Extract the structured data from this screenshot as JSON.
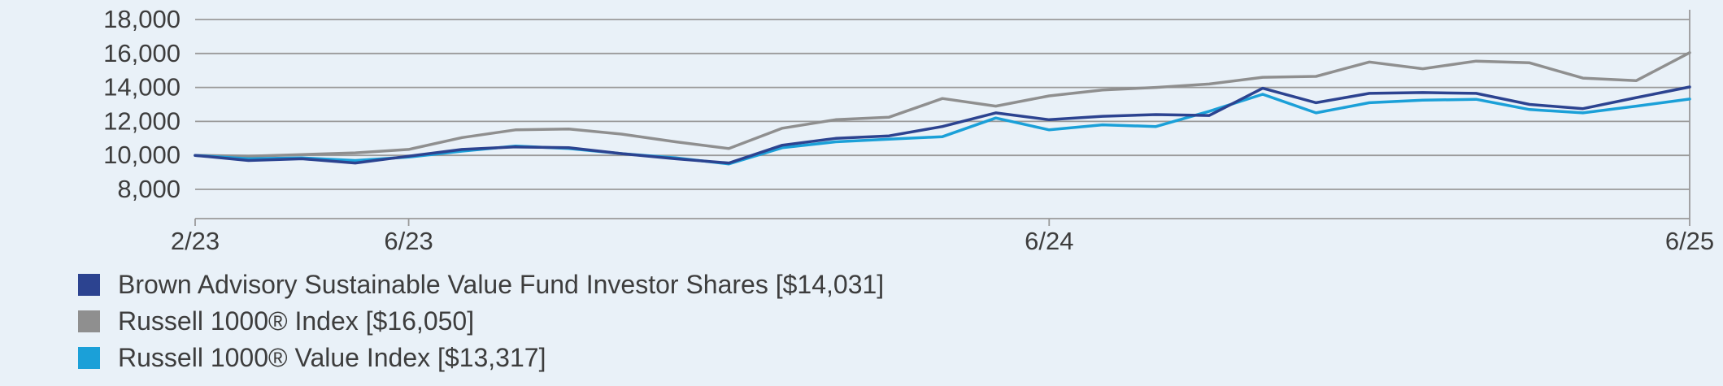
{
  "colors": {
    "background": "#e9f1f8",
    "gridline": "#9a9a9a",
    "axis": "#9a9a9a",
    "text": "#3d3d3d"
  },
  "chart_data": {
    "type": "line",
    "title": "",
    "grid": true,
    "legend_position": "bottom-left",
    "x_axis": {
      "unit": "month",
      "ticks": [
        {
          "position": 0,
          "label": "2/23"
        },
        {
          "position": 4,
          "label": "6/23"
        },
        {
          "position": 16,
          "label": "6/24"
        },
        {
          "position": 28,
          "label": "6/25"
        }
      ]
    },
    "y_axis": {
      "min": 8000,
      "max": 18000,
      "step": 2000,
      "ticks": [
        {
          "value": 18000,
          "label": "18,000"
        },
        {
          "value": 16000,
          "label": "16,000"
        },
        {
          "value": 14000,
          "label": "14,000"
        },
        {
          "value": 12000,
          "label": "12,000"
        },
        {
          "value": 10000,
          "label": "10,000"
        },
        {
          "value": 8000,
          "label": "8,000"
        }
      ]
    },
    "series": [
      {
        "id": "fund",
        "name": "Brown Advisory Sustainable Value Fund Investor Shares",
        "legend_label": "Brown Advisory Sustainable Value Fund Investor Shares [$14,031]",
        "final_value": 14031,
        "color": "#2c4390",
        "values": [
          10000,
          9700,
          9800,
          9550,
          9950,
          10350,
          10500,
          10450,
          10100,
          9800,
          9550,
          10600,
          11000,
          11150,
          11700,
          12500,
          12100,
          12300,
          12400,
          12350,
          13950,
          13100,
          13650,
          13700,
          13650,
          13000,
          12750,
          13400,
          14031
        ]
      },
      {
        "id": "russell-1000",
        "name": "Russell 1000® Index",
        "legend_label": "Russell 1000® Index [$16,050]",
        "final_value": 16050,
        "color": "#8f8f8f",
        "values": [
          10000,
          9950,
          10050,
          10150,
          10350,
          11050,
          11500,
          11550,
          11250,
          10800,
          10400,
          11600,
          12100,
          12250,
          13350,
          12900,
          13500,
          13850,
          14000,
          14200,
          14600,
          14650,
          15500,
          15100,
          15550,
          15450,
          14550,
          14400,
          16050
        ]
      },
      {
        "id": "russell-1000-value",
        "name": "Russell 1000® Value Index",
        "legend_label": "Russell 1000® Value Index [$13,317]",
        "final_value": 13317,
        "color": "#1ba0d8",
        "values": [
          10000,
          9800,
          9850,
          9700,
          9900,
          10250,
          10550,
          10400,
          10100,
          9850,
          9500,
          10450,
          10800,
          10950,
          11100,
          12200,
          11500,
          11800,
          11700,
          12600,
          13600,
          12500,
          13100,
          13250,
          13300,
          12700,
          12500,
          12900,
          13317
        ]
      }
    ]
  }
}
